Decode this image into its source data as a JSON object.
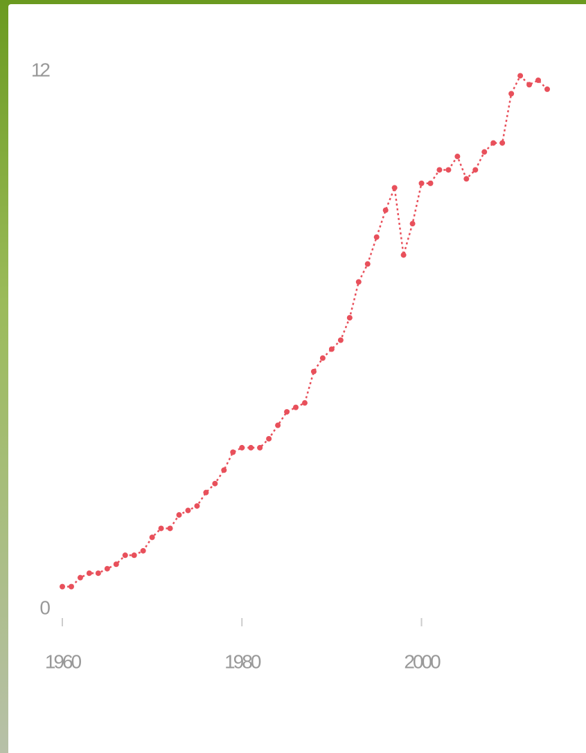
{
  "chart_data": {
    "type": "line",
    "x": [
      1960,
      1961,
      1962,
      1963,
      1964,
      1965,
      1966,
      1967,
      1968,
      1969,
      1970,
      1971,
      1972,
      1973,
      1974,
      1975,
      1976,
      1977,
      1978,
      1979,
      1980,
      1981,
      1982,
      1983,
      1984,
      1985,
      1986,
      1987,
      1988,
      1989,
      1990,
      1991,
      1992,
      1993,
      1994,
      1995,
      1996,
      1997,
      1998,
      1999,
      2000,
      2001,
      2002,
      2003,
      2004,
      2005,
      2006,
      2007,
      2008,
      2009,
      2010,
      2011,
      2012,
      2013,
      2014
    ],
    "series": [
      {
        "color": "#e8505b",
        "values": [
          0.5,
          0.5,
          0.7,
          0.8,
          0.8,
          0.9,
          1.0,
          1.2,
          1.2,
          1.3,
          1.6,
          1.8,
          1.8,
          2.1,
          2.2,
          2.3,
          2.6,
          2.8,
          3.1,
          3.5,
          3.6,
          3.6,
          3.6,
          3.8,
          4.1,
          4.4,
          4.5,
          4.6,
          5.3,
          5.6,
          5.8,
          6.0,
          6.5,
          7.3,
          7.7,
          8.3,
          8.9,
          9.4,
          7.9,
          8.6,
          9.5,
          9.5,
          9.8,
          9.8,
          10.1,
          9.6,
          9.8,
          10.2,
          10.4,
          10.4,
          11.5,
          11.9,
          11.7,
          11.8,
          11.6
        ]
      }
    ],
    "xlim": [
      1960,
      2014
    ],
    "xticks": [
      1960,
      1980,
      2000
    ],
    "ylim": [
      0,
      12
    ],
    "yticks": [
      0,
      12
    ]
  }
}
